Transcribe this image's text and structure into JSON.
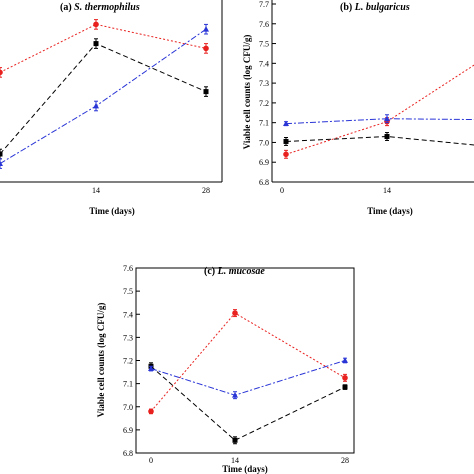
{
  "chart_data": [
    {
      "type": "line",
      "title_prefix": "(a)",
      "title_species": "S. thermophilus",
      "xlabel": "Time (days)",
      "ylabel": "",
      "x": [
        0,
        14,
        28
      ],
      "xticks": [
        "14",
        "28"
      ],
      "yticks": [],
      "series": [
        {
          "color": "#000000",
          "marker": "square",
          "values": [
            6.95,
            7.18,
            7.08
          ],
          "err": [
            0.01,
            0.01,
            0.01
          ]
        },
        {
          "color": "#e8211f",
          "marker": "circle",
          "values": [
            7.12,
            7.22,
            7.17
          ],
          "err": [
            0.01,
            0.01,
            0.01
          ]
        },
        {
          "color": "#2a35d6",
          "marker": "triangle",
          "values": [
            6.93,
            7.05,
            7.21
          ],
          "err": [
            0.01,
            0.01,
            0.01
          ]
        }
      ]
    },
    {
      "type": "line",
      "title_prefix": "(b)",
      "title_species": "L. bulgaricus",
      "xlabel": "Time (days)",
      "ylabel": "Viable cell counts (log CFU/g)",
      "x": [
        1,
        14,
        28
      ],
      "xticks": [
        "0",
        "14"
      ],
      "yticks": [
        "6.8",
        "6.9",
        "7.0",
        "7.1",
        "7.2",
        "7.3",
        "7.4",
        "7.5",
        "7.6",
        "7.7"
      ],
      "ylim": [
        6.8,
        7.7
      ],
      "series": [
        {
          "color": "#000000",
          "marker": "square",
          "values": [
            7.005,
            7.03,
            6.98
          ],
          "err": [
            0.02,
            0.02,
            0.02
          ]
        },
        {
          "color": "#e8211f",
          "marker": "circle",
          "values": [
            6.94,
            7.105,
            7.44
          ],
          "err": [
            0.02,
            0.02,
            0.02
          ]
        },
        {
          "color": "#2a35d6",
          "marker": "triangle",
          "values": [
            7.095,
            7.12,
            7.115
          ],
          "err": [
            0.01,
            0.02,
            0.02
          ]
        }
      ]
    },
    {
      "type": "line",
      "title_prefix": "(c)",
      "title_species": "L. mucosae",
      "xlabel": "Time (days)",
      "ylabel": "Viable cell counts (log CFU/g)",
      "x": [
        1,
        14,
        28
      ],
      "xticks": [
        "0",
        "14",
        "28"
      ],
      "yticks": [
        "6.8",
        "6.9",
        "7.0",
        "7.1",
        "7.2",
        "7.3",
        "7.4",
        "7.5",
        "7.6"
      ],
      "ylim": [
        6.8,
        7.6
      ],
      "series": [
        {
          "color": "#000000",
          "marker": "square",
          "values": [
            7.175,
            6.855,
            7.085
          ],
          "err": [
            0.015,
            0.015,
            0.01
          ]
        },
        {
          "color": "#e8211f",
          "marker": "circle",
          "values": [
            6.98,
            7.405,
            7.125
          ],
          "err": [
            0.01,
            0.015,
            0.015
          ]
        },
        {
          "color": "#2a35d6",
          "marker": "triangle",
          "values": [
            7.165,
            7.05,
            7.2
          ],
          "err": [
            0.01,
            0.015,
            0.01
          ]
        }
      ]
    }
  ]
}
